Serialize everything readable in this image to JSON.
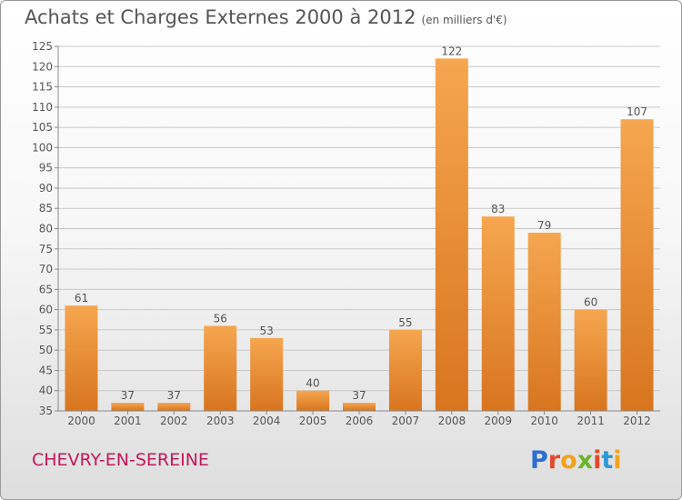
{
  "title": "Achats et Charges Externes 2000 à 2012",
  "subtitle": "(en milliers d'€)",
  "commune": "CHEVRY-EN-SEREINE",
  "logo": {
    "letters": [
      "P",
      "r",
      "o",
      "x",
      "i",
      "t",
      "i"
    ],
    "colors": [
      "#2d6fd0",
      "#e54a2b",
      "#f2a21b",
      "#6cb52d",
      "#e54a2b",
      "#2d9ad8",
      "#f2a21b"
    ]
  },
  "colors": {
    "bar_light": "#f6a650",
    "bar_dark": "#d8751f",
    "grid": "#c8c8c8",
    "text": "#555555",
    "commune": "#c2185b"
  },
  "chart_data": {
    "type": "bar",
    "categories": [
      "2000",
      "2001",
      "2002",
      "2003",
      "2004",
      "2005",
      "2006",
      "2007",
      "2008",
      "2009",
      "2010",
      "2011",
      "2012"
    ],
    "values": [
      61,
      37,
      37,
      56,
      53,
      40,
      37,
      55,
      122,
      83,
      79,
      60,
      107
    ],
    "ylim": [
      35,
      125
    ],
    "yticks": [
      35,
      40,
      45,
      50,
      55,
      60,
      65,
      70,
      75,
      80,
      85,
      90,
      95,
      100,
      105,
      110,
      115,
      120,
      125
    ],
    "grid": true,
    "data_labels": true
  }
}
